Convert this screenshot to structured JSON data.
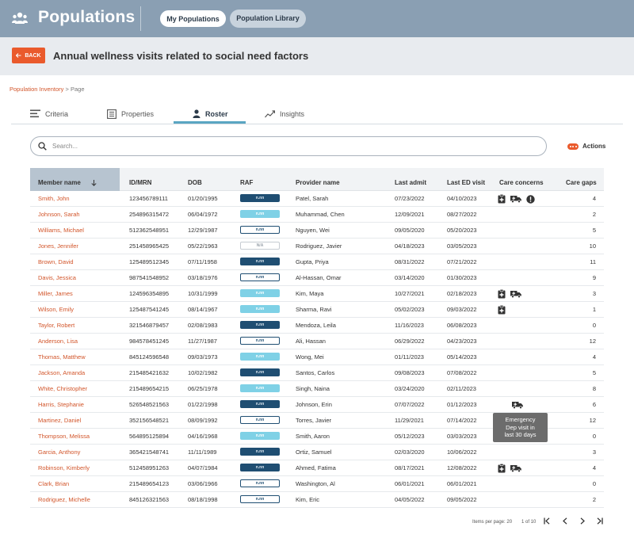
{
  "header": {
    "title": "Populations",
    "tabs": [
      "My Populations",
      "Population Library"
    ]
  },
  "subheader": {
    "back_label": "BACK",
    "title": "Annual wellness visits related to social need factors"
  },
  "breadcrumb": {
    "link": "Population Inventory",
    "separator": ">",
    "current": "Page"
  },
  "tabs": {
    "criteria": "Criteria",
    "properties": "Properties",
    "roster": "Roster",
    "insights": "Insights",
    "active": "Roster"
  },
  "search": {
    "placeholder": "Search...",
    "value": ""
  },
  "actions_label": "Actions",
  "columns": {
    "member_name": "Member name",
    "id_mrn": "ID/MRN",
    "dob": "DOB",
    "raf": "RAF",
    "provider_name": "Provider name",
    "last_admit": "Last admit",
    "last_ed_visit": "Last ED visit",
    "care_concerns": "Care concerns",
    "care_gaps": "Care gaps"
  },
  "rows": [
    {
      "name": "Smith, John",
      "id": "123456789111",
      "dob": "01/20/1995",
      "raf": "n.nn",
      "raf_style": "dark",
      "provider": "Patel, Sarah",
      "admit": "07/23/2022",
      "ed": "04/10/2023",
      "concerns": [
        "clipboard-plus-icon",
        "ambulance-icon",
        "alert-icon"
      ],
      "gaps": "4"
    },
    {
      "name": "Johnson, Sarah",
      "id": "254896315472",
      "dob": "06/04/1972",
      "raf": "n.nn",
      "raf_style": "light",
      "provider": "Muhammad, Chen",
      "admit": "12/09/2021",
      "ed": "08/27/2022",
      "concerns": [],
      "gaps": "2"
    },
    {
      "name": "Williams, Michael",
      "id": "512362548951",
      "dob": "12/29/1987",
      "raf": "n.nn",
      "raf_style": "outline",
      "provider": "Nguyen, Wei",
      "admit": "09/05/2020",
      "ed": "05/20/2023",
      "concerns": [],
      "gaps": "5"
    },
    {
      "name": "Jones, Jennifer",
      "id": "251458965425",
      "dob": "05/22/1963",
      "raf": "N/A",
      "raf_style": "na",
      "provider": "Rodriguez, Javier",
      "admit": "04/18/2023",
      "ed": "03/05/2023",
      "concerns": [],
      "gaps": "10"
    },
    {
      "name": "Brown, David",
      "id": "125489512345",
      "dob": "07/11/1958",
      "raf": "n.nn",
      "raf_style": "dark",
      "provider": "Gupta, Priya",
      "admit": "08/31/2022",
      "ed": "07/21/2022",
      "concerns": [],
      "gaps": "11"
    },
    {
      "name": "Davis, Jessica",
      "id": "987541548952",
      "dob": "03/18/1976",
      "raf": "n.nn",
      "raf_style": "outline",
      "provider": "Al-Hassan, Omar",
      "admit": "03/14/2020",
      "ed": "01/30/2023",
      "concerns": [],
      "gaps": "9"
    },
    {
      "name": "Miller, James",
      "id": "124596354895",
      "dob": "10/31/1999",
      "raf": "n.nn",
      "raf_style": "light",
      "provider": "Kim, Maya",
      "admit": "10/27/2021",
      "ed": "02/18/2023",
      "concerns": [
        "clipboard-plus-icon",
        "ambulance-icon"
      ],
      "gaps": "3"
    },
    {
      "name": "Wilson, Emily",
      "id": "125487541245",
      "dob": "08/14/1967",
      "raf": "n.nn",
      "raf_style": "light",
      "provider": "Sharma, Ravi",
      "admit": "05/02/2023",
      "ed": "09/03/2022",
      "concerns": [
        "clipboard-plus-icon"
      ],
      "gaps": "1"
    },
    {
      "name": "Taylor, Robert",
      "id": "321546879457",
      "dob": "02/08/1983",
      "raf": "n.nn",
      "raf_style": "dark",
      "provider": "Mendoza, Leila",
      "admit": "11/16/2023",
      "ed": "06/08/2023",
      "concerns": [],
      "gaps": "0"
    },
    {
      "name": "Anderson, Lisa",
      "id": "984578451245",
      "dob": "11/27/1987",
      "raf": "n.nn",
      "raf_style": "outline",
      "provider": "Ali, Hassan",
      "admit": "06/29/2022",
      "ed": "04/23/2023",
      "concerns": [],
      "gaps": "12"
    },
    {
      "name": "Thomas, Matthew",
      "id": "845124596548",
      "dob": "09/03/1973",
      "raf": "n.nn",
      "raf_style": "light",
      "provider": "Wong, Mei",
      "admit": "01/11/2023",
      "ed": "05/14/2023",
      "concerns": [],
      "gaps": "4"
    },
    {
      "name": "Jackson, Amanda",
      "id": "215485421632",
      "dob": "10/02/1982",
      "raf": "n.nn",
      "raf_style": "dark",
      "provider": "Santos, Carlos",
      "admit": "09/08/2023",
      "ed": "07/08/2022",
      "concerns": [],
      "gaps": "5"
    },
    {
      "name": "White, Christopher",
      "id": "215489654215",
      "dob": "06/25/1978",
      "raf": "n.nn",
      "raf_style": "light",
      "provider": "Singh, Naina",
      "admit": "03/24/2020",
      "ed": "02/11/2023",
      "concerns": [],
      "gaps": "8"
    },
    {
      "name": "Harris, Stephanie",
      "id": "526548521563",
      "dob": "01/22/1998",
      "raf": "n.nn",
      "raf_style": "dark",
      "provider": "Johnson, Erin",
      "admit": "07/07/2022",
      "ed": "01/12/2023",
      "concerns": [
        "ambulance-icon-offset"
      ],
      "gaps": "6"
    },
    {
      "name": "Martinez, Daniel",
      "id": "352156548521",
      "dob": "08/09/1992",
      "raf": "n.nn",
      "raf_style": "outline",
      "provider": "Torres, Javier",
      "admit": "11/29/2021",
      "ed": "07/14/2022",
      "concerns": [],
      "gaps": "12"
    },
    {
      "name": "Thompson, Melissa",
      "id": "564895125894",
      "dob": "04/16/1968",
      "raf": "n.nn",
      "raf_style": "light",
      "provider": "Smith, Aaron",
      "admit": "05/12/2023",
      "ed": "03/03/2023",
      "concerns": [],
      "gaps": "0"
    },
    {
      "name": "Garcia, Anthony",
      "id": "365421548741",
      "dob": "11/11/1989",
      "raf": "n.nn",
      "raf_style": "dark",
      "provider": "Ortiz, Samuel",
      "admit": "02/03/2020",
      "ed": "10/06/2022",
      "concerns": [],
      "gaps": "3"
    },
    {
      "name": "Robinson, Kimberly",
      "id": "512458951263",
      "dob": "04/07/1984",
      "raf": "n.nn",
      "raf_style": "dark",
      "provider": "Ahmed, Fatima",
      "admit": "08/17/2021",
      "ed": "12/08/2022",
      "concerns": [
        "clipboard-plus-icon",
        "ambulance-icon"
      ],
      "gaps": "4"
    },
    {
      "name": "Clark, Brian",
      "id": "215489654123",
      "dob": "03/06/1966",
      "raf": "n.nn",
      "raf_style": "outline",
      "provider": "Washington, Al",
      "admit": "06/01/2021",
      "ed": "06/01/2021",
      "concerns": [],
      "gaps": "0"
    },
    {
      "name": "Rodriguez, Michelle",
      "id": "845126321563",
      "dob": "08/18/1998",
      "raf": "n.nn",
      "raf_style": "outline",
      "provider": "Kim, Eric",
      "admit": "04/05/2022",
      "ed": "09/05/2022",
      "concerns": [],
      "gaps": "2"
    }
  ],
  "tooltip": {
    "line1": "Emergency",
    "line2": "Dep visit in",
    "line3": "last 30 days"
  },
  "pagination": {
    "items_per_page_label": "Items per page: 20",
    "page_info": "1 of 10"
  },
  "colors": {
    "accent": "#ea5a2c",
    "header_bg": "#8a9fb3",
    "raf_dark": "#1f4e72",
    "raf_light": "#7fd1e6",
    "tab_underline": "#5aa5c2"
  }
}
